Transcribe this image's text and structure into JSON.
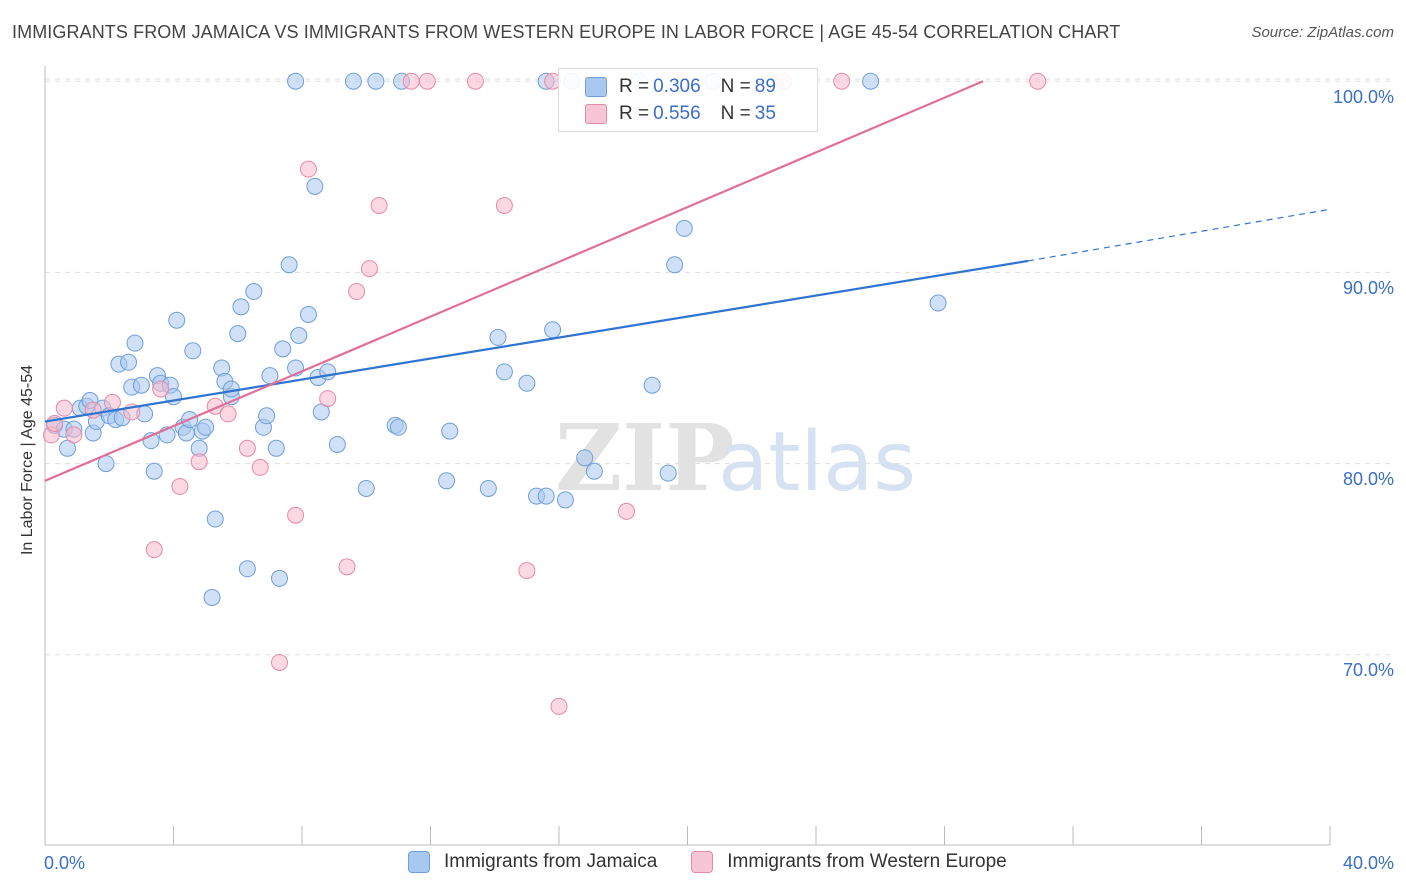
{
  "title": "IMMIGRANTS FROM JAMAICA VS IMMIGRANTS FROM WESTERN EUROPE IN LABOR FORCE | AGE 45-54 CORRELATION CHART",
  "source": "Source: ZipAtlas.com",
  "watermark": {
    "zip": "ZIP",
    "atlas": "atlas"
  },
  "colors": {
    "jamaica_fill": "#a9c8f0",
    "jamaica_stroke": "#6f9fd8",
    "jamaica_line": "#2f74d0",
    "weurope_fill": "#f7b8cb",
    "weurope_stroke": "#e58aa8",
    "weurope_line": "#e0709a",
    "tick_text": "#3a6fc4",
    "grid": "#dddddd"
  },
  "legend": {
    "rows": [
      {
        "r_label": "R =",
        "r_value": "0.306",
        "n_label": "N =",
        "n_value": "89"
      },
      {
        "r_label": "R =",
        "r_value": "0.556",
        "n_label": "N =",
        "n_value": "35"
      }
    ]
  },
  "chart_data": {
    "type": "scatter",
    "xlabel": "",
    "ylabel": "In Labor Force | Age 45-54",
    "xlim": [
      0,
      40
    ],
    "ylim": [
      60,
      101.5
    ],
    "x_tick_labels": [
      "0.0%",
      "40.0%"
    ],
    "y_ticks": [
      70,
      80,
      90,
      100
    ],
    "y_tick_labels": [
      "70.0%",
      "80.0%",
      "90.0%",
      "100.0%"
    ],
    "grid": true,
    "legend_placement": "top-center",
    "series": [
      {
        "name": "Immigrants from Jamaica",
        "r": 0.306,
        "n": 89,
        "trend": {
          "x0": 0,
          "y0": 82.2,
          "x1": 30.6,
          "y1": 90.6,
          "dash_to_x": 40,
          "dash_to_y": 93.3
        },
        "points": [
          [
            0.3,
            82.0
          ],
          [
            0.6,
            81.8
          ],
          [
            0.7,
            80.8
          ],
          [
            0.9,
            81.8
          ],
          [
            1.1,
            82.9
          ],
          [
            1.3,
            83.0
          ],
          [
            1.4,
            83.3
          ],
          [
            1.5,
            81.6
          ],
          [
            1.6,
            82.2
          ],
          [
            1.8,
            82.9
          ],
          [
            1.9,
            80.0
          ],
          [
            2.0,
            82.5
          ],
          [
            2.2,
            82.3
          ],
          [
            2.4,
            82.4
          ],
          [
            2.3,
            85.2
          ],
          [
            2.6,
            85.3
          ],
          [
            2.7,
            84.0
          ],
          [
            2.8,
            86.3
          ],
          [
            3.0,
            84.1
          ],
          [
            3.1,
            82.6
          ],
          [
            3.3,
            81.2
          ],
          [
            3.4,
            79.6
          ],
          [
            3.5,
            84.6
          ],
          [
            3.6,
            84.2
          ],
          [
            3.8,
            81.5
          ],
          [
            3.9,
            84.1
          ],
          [
            4.0,
            83.5
          ],
          [
            4.1,
            87.5
          ],
          [
            4.3,
            81.9
          ],
          [
            4.4,
            81.6
          ],
          [
            4.5,
            82.3
          ],
          [
            4.6,
            85.9
          ],
          [
            4.8,
            80.8
          ],
          [
            4.9,
            81.7
          ],
          [
            5.0,
            81.9
          ],
          [
            5.3,
            77.1
          ],
          [
            5.2,
            73.0
          ],
          [
            5.5,
            85.0
          ],
          [
            5.6,
            84.3
          ],
          [
            5.8,
            83.5
          ],
          [
            5.8,
            83.9
          ],
          [
            6.0,
            86.8
          ],
          [
            6.1,
            88.2
          ],
          [
            6.3,
            74.5
          ],
          [
            6.5,
            89.0
          ],
          [
            6.8,
            81.9
          ],
          [
            6.9,
            82.5
          ],
          [
            7.0,
            84.6
          ],
          [
            7.2,
            80.8
          ],
          [
            7.3,
            74.0
          ],
          [
            7.4,
            86.0
          ],
          [
            7.6,
            90.4
          ],
          [
            7.8,
            85.0
          ],
          [
            7.9,
            86.7
          ],
          [
            8.2,
            87.8
          ],
          [
            8.4,
            94.5
          ],
          [
            8.5,
            84.5
          ],
          [
            8.6,
            82.7
          ],
          [
            8.8,
            84.8
          ],
          [
            9.1,
            81.0
          ],
          [
            10.0,
            78.7
          ],
          [
            10.9,
            82.0
          ],
          [
            11.0,
            81.9
          ],
          [
            12.5,
            79.1
          ],
          [
            12.6,
            81.7
          ],
          [
            13.8,
            78.7
          ],
          [
            14.1,
            86.6
          ],
          [
            14.3,
            84.8
          ],
          [
            15.0,
            84.2
          ],
          [
            15.3,
            78.3
          ],
          [
            15.6,
            78.3
          ],
          [
            15.8,
            87.0
          ],
          [
            16.2,
            78.1
          ],
          [
            16.8,
            80.3
          ],
          [
            17.1,
            79.6
          ],
          [
            18.9,
            84.1
          ],
          [
            19.4,
            79.5
          ],
          [
            19.6,
            90.4
          ],
          [
            19.9,
            92.3
          ],
          [
            27.8,
            88.4
          ],
          [
            7.8,
            100.0
          ],
          [
            9.6,
            100.0
          ],
          [
            10.3,
            100.0
          ],
          [
            11.1,
            100.0
          ],
          [
            15.6,
            100.0
          ],
          [
            16.4,
            100.0
          ],
          [
            18.5,
            100.0
          ],
          [
            20.8,
            100.0
          ],
          [
            25.7,
            100.0
          ]
        ]
      },
      {
        "name": "Immigrants from Western Europe",
        "r": 0.556,
        "n": 35,
        "trend": {
          "x0": 0,
          "y0": 79.1,
          "x1": 29.2,
          "y1": 100.0
        },
        "points": [
          [
            0.2,
            81.5
          ],
          [
            0.3,
            82.1
          ],
          [
            0.6,
            82.9
          ],
          [
            0.9,
            81.5
          ],
          [
            1.5,
            82.8
          ],
          [
            2.1,
            83.2
          ],
          [
            2.7,
            82.7
          ],
          [
            3.4,
            75.5
          ],
          [
            3.6,
            83.9
          ],
          [
            4.2,
            78.8
          ],
          [
            4.8,
            80.1
          ],
          [
            5.3,
            83.0
          ],
          [
            5.7,
            82.6
          ],
          [
            6.3,
            80.8
          ],
          [
            6.7,
            79.8
          ],
          [
            7.3,
            69.6
          ],
          [
            7.8,
            77.3
          ],
          [
            8.2,
            95.4
          ],
          [
            8.8,
            83.4
          ],
          [
            9.4,
            74.6
          ],
          [
            9.7,
            89.0
          ],
          [
            10.1,
            90.2
          ],
          [
            10.4,
            93.5
          ],
          [
            14.3,
            93.5
          ],
          [
            15.0,
            74.4
          ],
          [
            16.0,
            67.3
          ],
          [
            18.1,
            77.5
          ],
          [
            11.4,
            100.0
          ],
          [
            11.9,
            100.0
          ],
          [
            13.4,
            100.0
          ],
          [
            15.8,
            100.0
          ],
          [
            19.8,
            100.0
          ],
          [
            23.0,
            100.0
          ],
          [
            24.8,
            100.0
          ],
          [
            30.9,
            100.0
          ]
        ]
      }
    ]
  }
}
